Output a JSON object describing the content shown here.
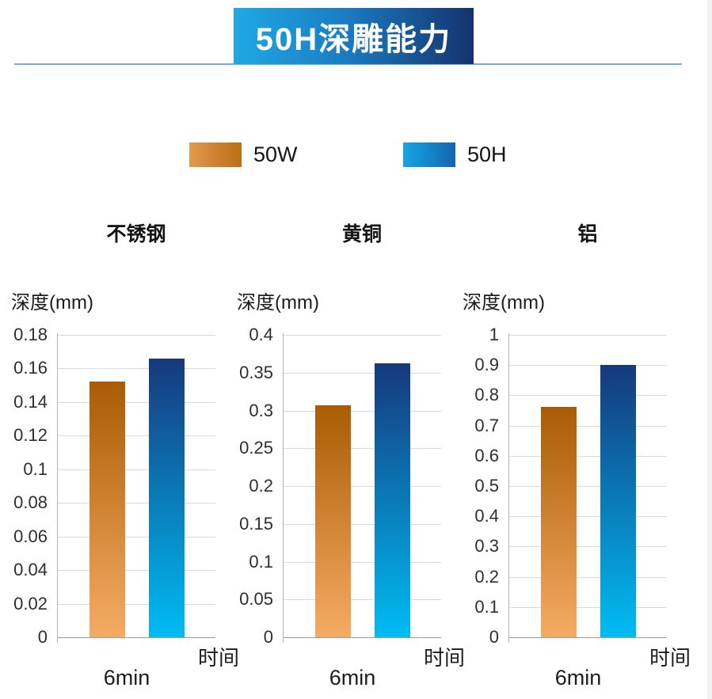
{
  "header": {
    "title": "50H深雕能力"
  },
  "legend": {
    "position": "top",
    "items": [
      {
        "label": "50W",
        "gradient_left": "#e1994f",
        "gradient_right": "#bc6e12"
      },
      {
        "label": "50H",
        "gradient_left": "#14a6e3",
        "gradient_right": "#1465ae"
      }
    ]
  },
  "colors": {
    "banner_gradient_left": "#1fa9e4",
    "banner_gradient_right": "#15336e",
    "underline": "#85a9cb",
    "bar_50w_top": "#a95c03",
    "bar_50w_bottom": "#f6ab64",
    "bar_50h_top": "#15397c",
    "bar_50h_bottom": "#00bcf4",
    "gridline": "#d9d9d9",
    "axis": "#b3b3b3"
  },
  "chart_data": [
    {
      "type": "bar",
      "title": "不锈钢",
      "ylabel": "深度(mm)",
      "xlabel": "时间",
      "categories": [
        "6min"
      ],
      "series": [
        {
          "name": "50W",
          "values": [
            0.152
          ]
        },
        {
          "name": "50H",
          "values": [
            0.166
          ]
        }
      ],
      "ylim": [
        0,
        0.18
      ],
      "yticks": [
        "0",
        "0.02",
        "0.04",
        "0.06",
        "0.08",
        "0.1",
        "0.12",
        "0.14",
        "0.16",
        "0.18"
      ],
      "grid": true
    },
    {
      "type": "bar",
      "title": "黄铜",
      "ylabel": "深度(mm)",
      "xlabel": "时间",
      "categories": [
        "6min"
      ],
      "series": [
        {
          "name": "50W",
          "values": [
            0.307
          ]
        },
        {
          "name": "50H",
          "values": [
            0.362
          ]
        }
      ],
      "ylim": [
        0,
        0.4
      ],
      "yticks": [
        "0",
        "0.05",
        "0.1",
        "0.15",
        "0.2",
        "0.25",
        "0.3",
        "0.35",
        "0.4"
      ],
      "grid": true
    },
    {
      "type": "bar",
      "title": "铝",
      "ylabel": "深度(mm)",
      "xlabel": "时间",
      "categories": [
        "6min"
      ],
      "series": [
        {
          "name": "50W",
          "values": [
            0.763
          ]
        },
        {
          "name": "50H",
          "values": [
            0.9
          ]
        }
      ],
      "ylim": [
        0,
        1
      ],
      "yticks": [
        "0",
        "0.1",
        "0.2",
        "0.3",
        "0.4",
        "0.5",
        "0.6",
        "0.7",
        "0.8",
        "0.9",
        "1"
      ],
      "grid": true
    }
  ]
}
